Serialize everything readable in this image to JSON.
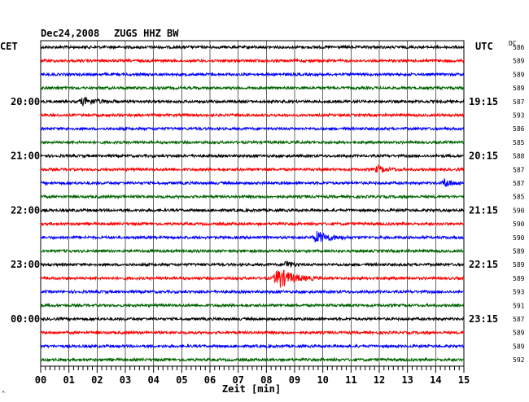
{
  "header": {
    "date": "Dec24,2008",
    "station": "ZUGS HHZ BW",
    "left_zone": "CET",
    "right_zone": "UTC",
    "dc_label": "DC"
  },
  "colors": {
    "trace_cycle": [
      "#000000",
      "#ff0000",
      "#0000ff",
      "#006400"
    ],
    "grid": "#000000",
    "background": "#ffffff"
  },
  "chart_data": {
    "type": "line",
    "title": "Dec24,2008 ZUGS HHZ BW",
    "xlabel": "Zeit [min]",
    "x_ticks": [
      "00",
      "01",
      "02",
      "03",
      "04",
      "05",
      "06",
      "07",
      "08",
      "09",
      "10",
      "11",
      "12",
      "13",
      "14",
      "15"
    ],
    "x_range": [
      0,
      15
    ],
    "left_time_labels": [
      {
        "row": 4,
        "label": "20:00"
      },
      {
        "row": 8,
        "label": "21:00"
      },
      {
        "row": 12,
        "label": "22:00"
      },
      {
        "row": 16,
        "label": "23:00"
      },
      {
        "row": 20,
        "label": "00:00"
      }
    ],
    "right_time_labels": [
      {
        "row": 4,
        "label": "19:15"
      },
      {
        "row": 8,
        "label": "20:15"
      },
      {
        "row": 12,
        "label": "21:15"
      },
      {
        "row": 16,
        "label": "22:15"
      },
      {
        "row": 20,
        "label": "23:15"
      }
    ],
    "dc_values": [
      "586",
      "589",
      "589",
      "589",
      "587",
      "593",
      "586",
      "585",
      "588",
      "587",
      "587",
      "585",
      "590",
      "590",
      "590",
      "589",
      "589",
      "589",
      "593",
      "591",
      "587",
      "589",
      "589",
      "592"
    ],
    "traces": [
      {
        "row": 0,
        "color_index": 0,
        "noise": 1.6,
        "events": []
      },
      {
        "row": 1,
        "color_index": 1,
        "noise": 1.6,
        "events": []
      },
      {
        "row": 2,
        "color_index": 2,
        "noise": 1.6,
        "events": []
      },
      {
        "row": 3,
        "color_index": 3,
        "noise": 1.6,
        "events": []
      },
      {
        "row": 4,
        "color_index": 0,
        "noise": 1.6,
        "events": [
          {
            "start_min": 1.3,
            "end_min": 2.8,
            "amp": 4.5
          }
        ]
      },
      {
        "row": 5,
        "color_index": 1,
        "noise": 1.6,
        "events": []
      },
      {
        "row": 6,
        "color_index": 2,
        "noise": 1.6,
        "events": []
      },
      {
        "row": 7,
        "color_index": 3,
        "noise": 1.6,
        "events": []
      },
      {
        "row": 8,
        "color_index": 0,
        "noise": 1.6,
        "events": []
      },
      {
        "row": 9,
        "color_index": 1,
        "noise": 1.6,
        "events": [
          {
            "start_min": 11.8,
            "end_min": 12.8,
            "amp": 4
          }
        ]
      },
      {
        "row": 10,
        "color_index": 2,
        "noise": 1.6,
        "events": [
          {
            "start_min": 14.2,
            "end_min": 15.0,
            "amp": 5
          }
        ]
      },
      {
        "row": 11,
        "color_index": 3,
        "noise": 1.6,
        "events": []
      },
      {
        "row": 12,
        "color_index": 0,
        "noise": 1.6,
        "events": []
      },
      {
        "row": 13,
        "color_index": 1,
        "noise": 1.6,
        "events": []
      },
      {
        "row": 14,
        "color_index": 2,
        "noise": 1.6,
        "events": [
          {
            "start_min": 9.6,
            "end_min": 11.0,
            "amp": 7
          }
        ]
      },
      {
        "row": 15,
        "color_index": 3,
        "noise": 1.6,
        "events": []
      },
      {
        "row": 16,
        "color_index": 0,
        "noise": 1.6,
        "events": [
          {
            "start_min": 8.6,
            "end_min": 9.2,
            "amp": 5
          }
        ]
      },
      {
        "row": 17,
        "color_index": 1,
        "noise": 1.6,
        "events": [
          {
            "start_min": 8.2,
            "end_min": 9.8,
            "amp": 12
          }
        ]
      },
      {
        "row": 18,
        "color_index": 2,
        "noise": 1.6,
        "events": []
      },
      {
        "row": 19,
        "color_index": 3,
        "noise": 1.6,
        "events": []
      },
      {
        "row": 20,
        "color_index": 0,
        "noise": 1.6,
        "events": []
      },
      {
        "row": 21,
        "color_index": 1,
        "noise": 1.6,
        "events": []
      },
      {
        "row": 22,
        "color_index": 2,
        "noise": 1.6,
        "events": []
      },
      {
        "row": 23,
        "color_index": 3,
        "noise": 1.6,
        "events": []
      }
    ]
  }
}
